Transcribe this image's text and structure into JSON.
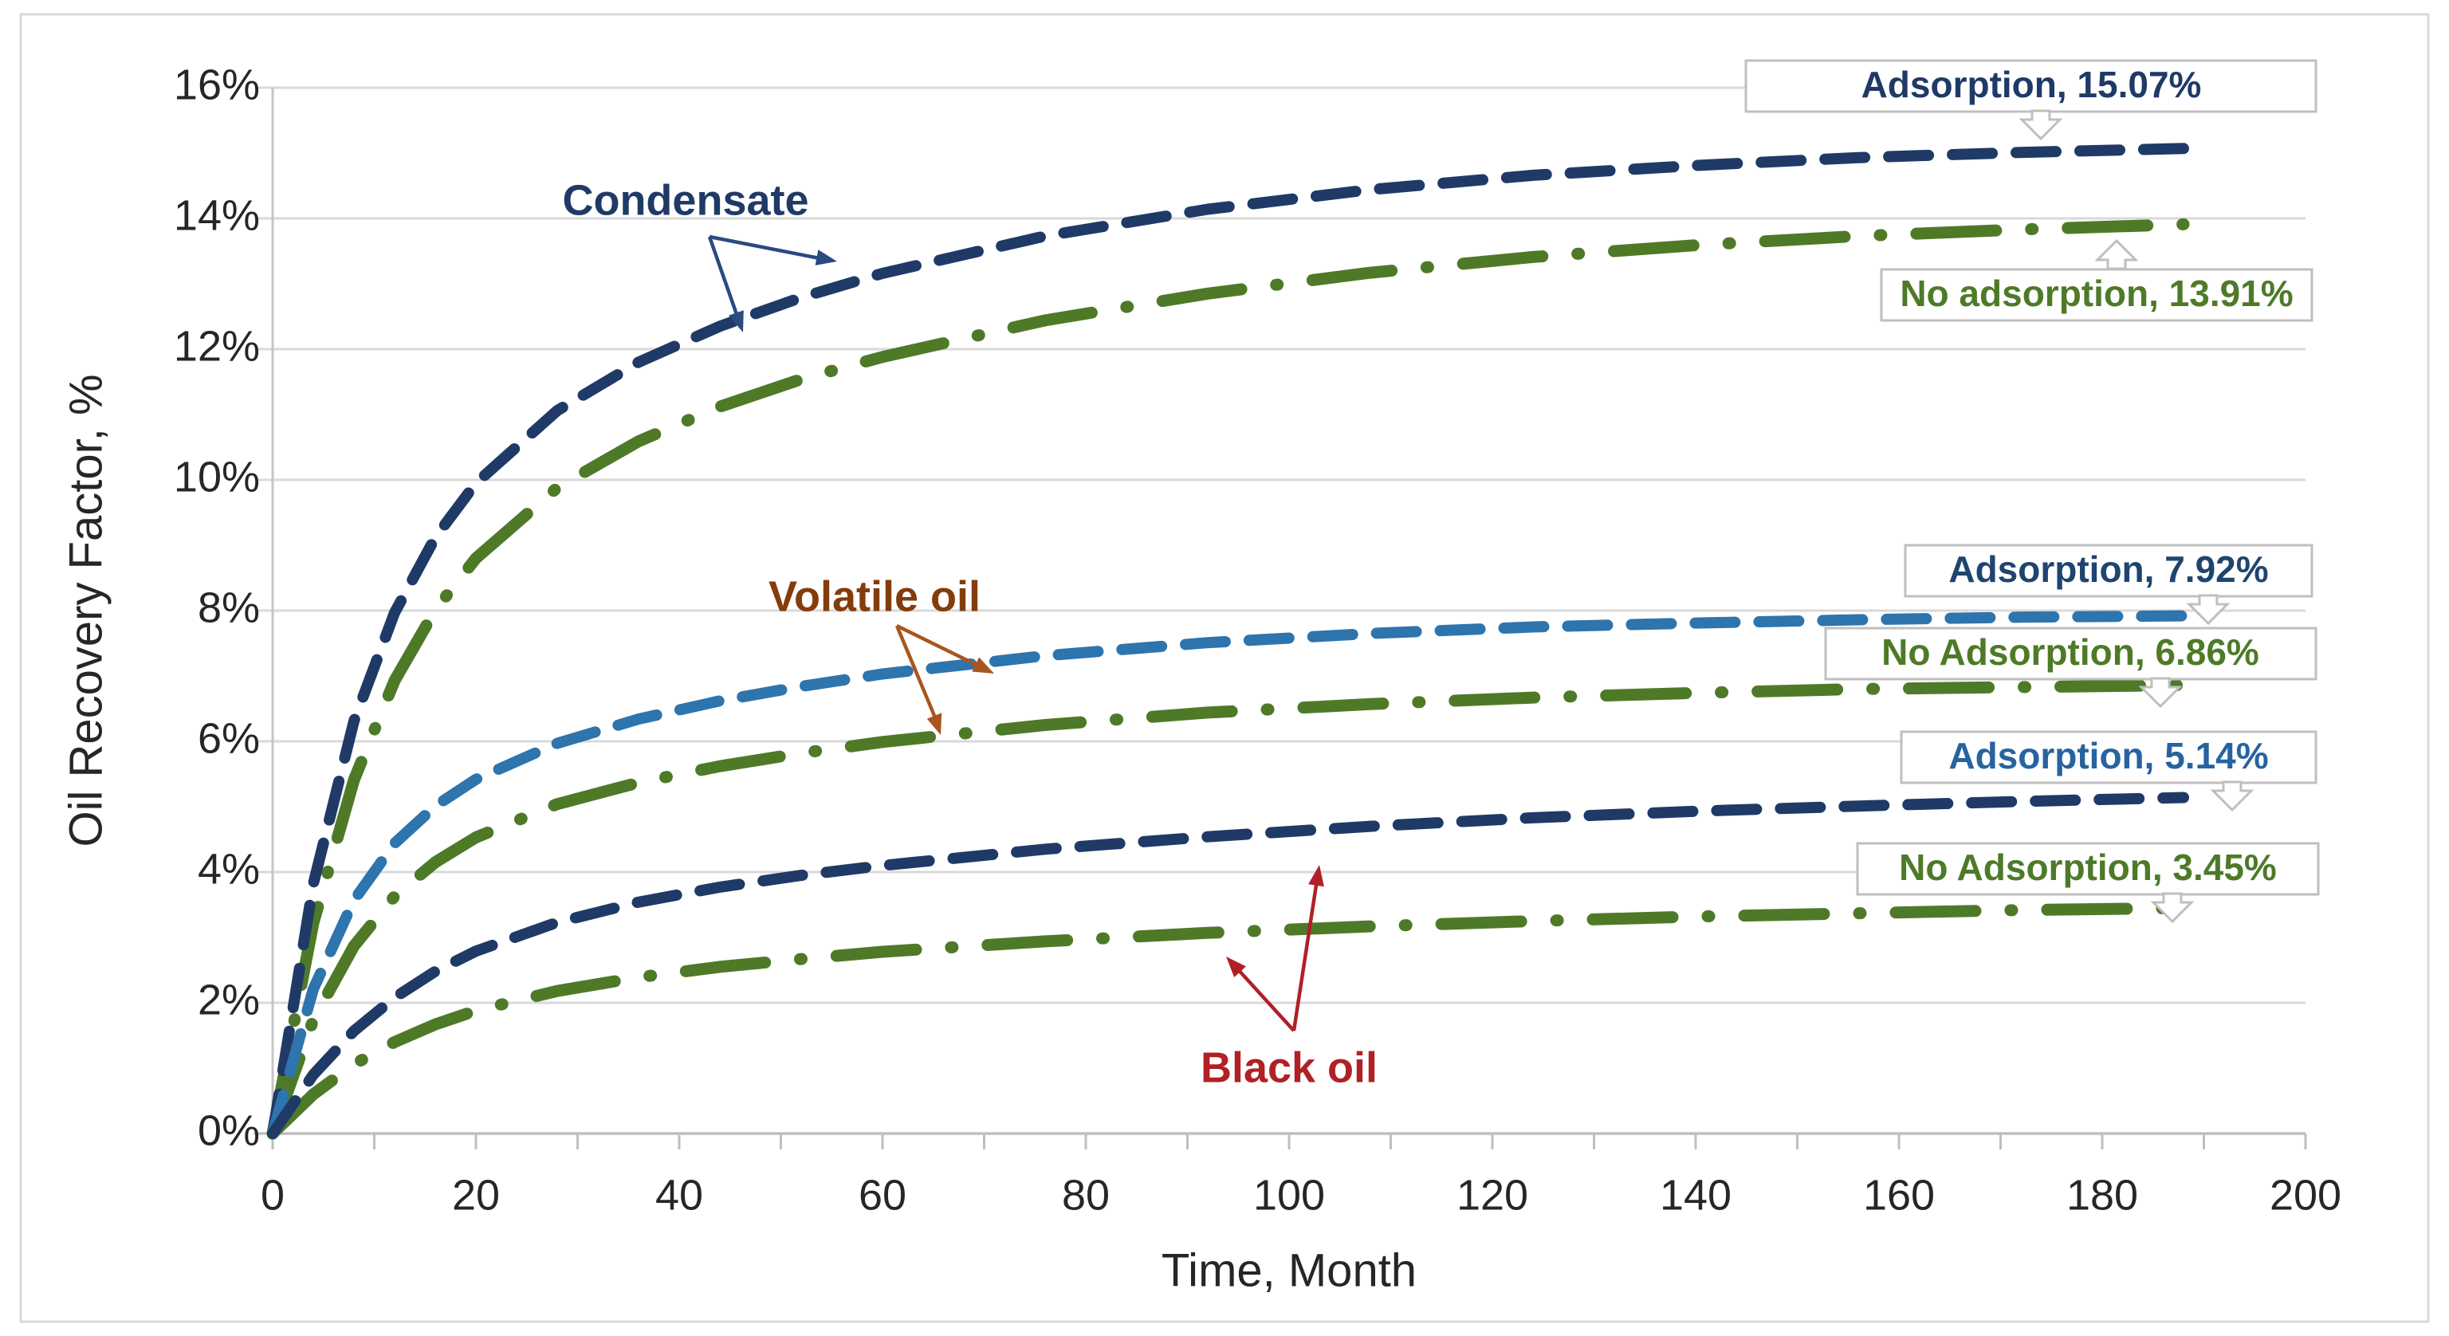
{
  "chart_data": {
    "type": "line",
    "title": "",
    "xlabel": "Time, Month",
    "ylabel": "Oil Recovery Factor, %",
    "xlim": [
      0,
      200
    ],
    "ylim": [
      0,
      16
    ],
    "grid": "horizontal",
    "legend": "none (curves labeled by annotations)",
    "x_ticks": [
      0,
      20,
      40,
      60,
      80,
      100,
      120,
      140,
      160,
      180,
      200
    ],
    "x_tick_labels": [
      "0",
      "20",
      "40",
      "60",
      "80",
      "100",
      "120",
      "140",
      "160",
      "180",
      "200"
    ],
    "x_minor_tick_step": 10,
    "y_ticks": [
      0,
      2,
      4,
      6,
      8,
      10,
      12,
      14,
      16
    ],
    "y_tick_labels": [
      "0%",
      "2%",
      "4%",
      "6%",
      "8%",
      "10%",
      "12%",
      "14%",
      "16%"
    ],
    "x": [
      0,
      4,
      8,
      12,
      16,
      20,
      28,
      36,
      44,
      52,
      60,
      76,
      92,
      108,
      124,
      140,
      156,
      172,
      188
    ],
    "series": [
      {
        "name": "Condensate - No adsorption",
        "fluid": "Condensate",
        "case": "No adsorption",
        "color": "#4e7a28",
        "dash": "dashdot",
        "final_value_pct": 13.91,
        "values": [
          0,
          3.22,
          5.41,
          6.93,
          8.01,
          8.8,
          9.88,
          10.59,
          11.12,
          11.54,
          11.88,
          12.44,
          12.85,
          13.17,
          13.41,
          13.59,
          13.73,
          13.83,
          13.91
        ]
      },
      {
        "name": "Condensate - Adsorption",
        "fluid": "Condensate",
        "case": "Adsorption",
        "color": "#1f3a66",
        "dash": "dashed",
        "final_value_pct": 15.07,
        "values": [
          0,
          3.82,
          6.31,
          7.97,
          9.12,
          9.95,
          11.06,
          11.8,
          12.35,
          12.79,
          13.16,
          13.73,
          14.14,
          14.44,
          14.66,
          14.81,
          14.93,
          15.01,
          15.07
        ]
      },
      {
        "name": "Volatile oil - No Adsorption",
        "fluid": "Volatile oil",
        "case": "No Adsorption",
        "color": "#4e7a28",
        "dash": "dashdot",
        "final_value_pct": 6.86,
        "values": [
          0,
          1.74,
          2.87,
          3.63,
          4.15,
          4.53,
          5.04,
          5.37,
          5.62,
          5.82,
          5.99,
          6.25,
          6.44,
          6.57,
          6.67,
          6.74,
          6.8,
          6.83,
          6.86
        ]
      },
      {
        "name": "Volatile oil - Adsorption",
        "fluid": "Volatile oil",
        "case": "Adsorption",
        "color": "#2e74ad",
        "dash": "dashed",
        "final_value_pct": 7.92,
        "values": [
          0,
          2.21,
          3.57,
          4.44,
          5.01,
          5.42,
          5.97,
          6.34,
          6.62,
          6.84,
          7.03,
          7.31,
          7.51,
          7.65,
          7.75,
          7.81,
          7.86,
          7.9,
          7.92
        ]
      },
      {
        "name": "Black oil - No Adsorption",
        "fluid": "Black oil",
        "case": "No Adsorption",
        "color": "#4e7a28",
        "dash": "dashdot",
        "final_value_pct": 3.45,
        "values": [
          0,
          0.6,
          1.06,
          1.4,
          1.67,
          1.88,
          2.18,
          2.39,
          2.55,
          2.67,
          2.78,
          2.94,
          3.07,
          3.17,
          3.25,
          3.32,
          3.37,
          3.42,
          3.45
        ]
      },
      {
        "name": "Black oil - Adsorption",
        "fluid": "Black oil",
        "case": "Adsorption",
        "color": "#1f3a66",
        "dash": "dashed",
        "final_value_pct": 5.14,
        "values": [
          0,
          0.9,
          1.57,
          2.08,
          2.48,
          2.79,
          3.23,
          3.54,
          3.77,
          3.95,
          4.1,
          4.35,
          4.54,
          4.7,
          4.83,
          4.93,
          5.01,
          5.08,
          5.14
        ]
      }
    ],
    "annotations": {
      "callouts": [
        {
          "label": "Adsorption, 15.07%",
          "color": "#1f3a66"
        },
        {
          "label": "No adsorption, 13.91%",
          "color": "#4e7a28"
        },
        {
          "label": "Adsorption, 7.92%",
          "color": "#1f4470"
        },
        {
          "label": "No Adsorption, 6.86%",
          "color": "#4e7a28"
        },
        {
          "label": "Adsorption, 5.14%",
          "color": "#2763a0"
        },
        {
          "label": "No Adsorption, 3.45%",
          "color": "#4e7a28"
        }
      ],
      "series_labels": [
        {
          "label": "Condensate",
          "color": "#1f3a66",
          "arrow_color": "#2a4a80"
        },
        {
          "label": "Volatile oil",
          "color": "#843c0c",
          "arrow_color": "#a8551e"
        },
        {
          "label": "Black oil",
          "color": "#b02025",
          "arrow_color": "#b02025"
        }
      ]
    },
    "style": {
      "background": "#ffffff",
      "frame_border": "#d9d9d9",
      "gridline_color": "#d9d9d9",
      "axis_color": "#bfbfbf",
      "tick_text_color": "#262626"
    }
  }
}
